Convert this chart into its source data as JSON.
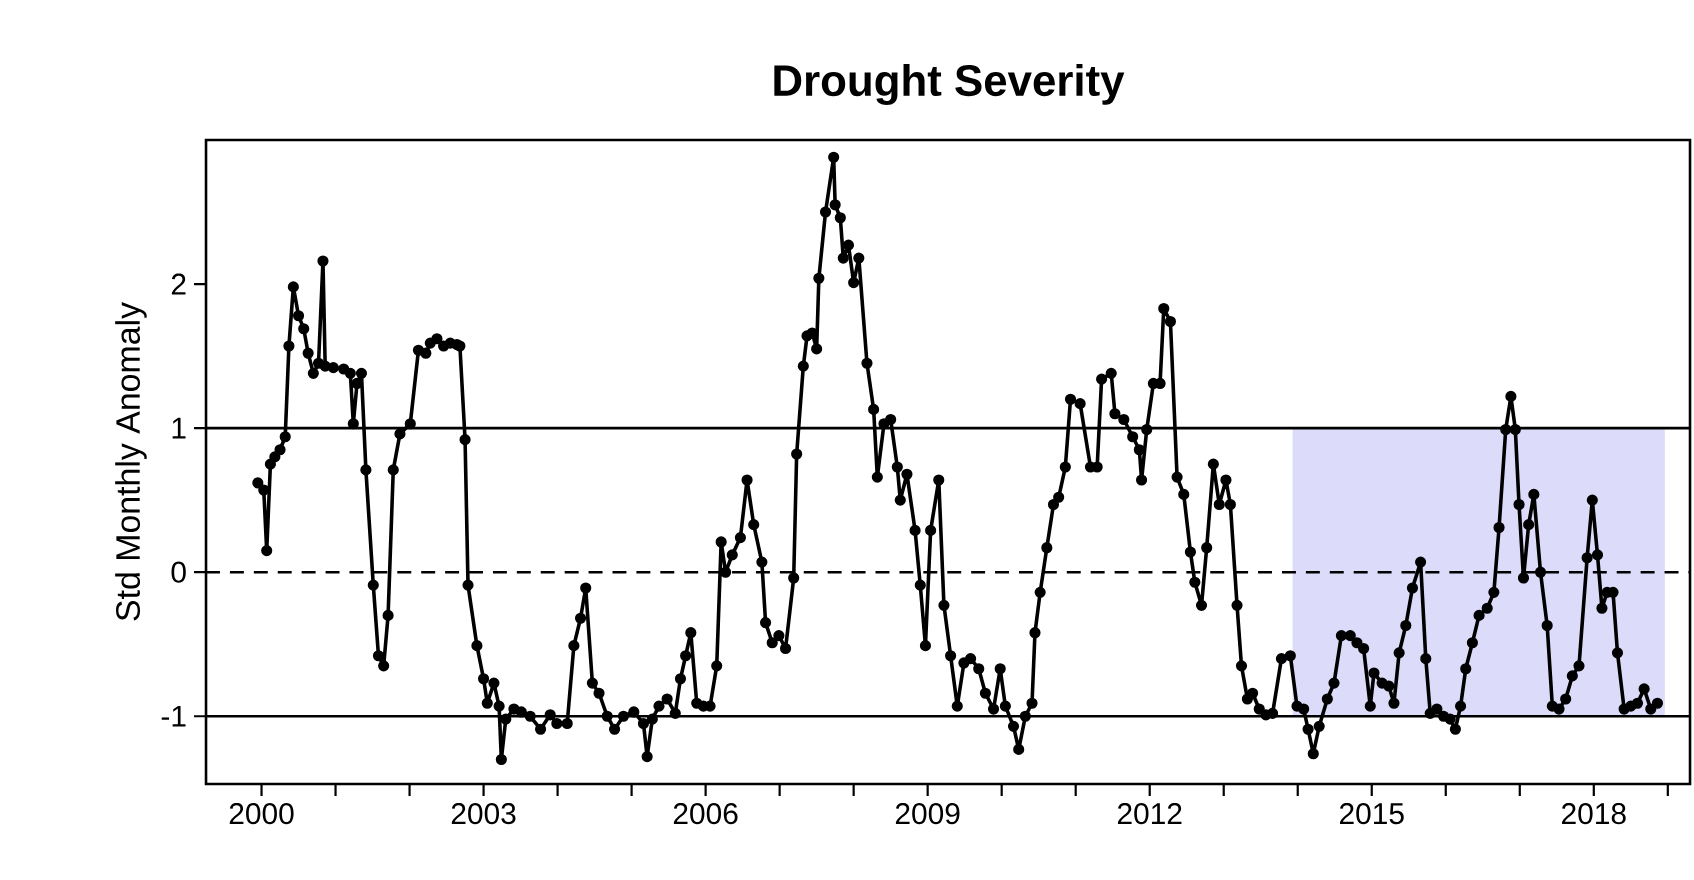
{
  "chart_data": {
    "type": "line",
    "title": "Drought Severity",
    "ylabel": "Std Monthly Anomaly",
    "marker": "circle",
    "line_style": "solid",
    "xlim": [
      1999.25,
      2019.3
    ],
    "ylim": [
      -1.47,
      3.0
    ],
    "xticks": [
      2000,
      {
        "value": 2001,
        "label": null
      },
      {
        "value": 2002,
        "label": null
      },
      2003,
      {
        "value": 2004,
        "label": null
      },
      {
        "value": 2005,
        "label": null
      },
      2006,
      {
        "value": 2007,
        "label": null
      },
      {
        "value": 2008,
        "label": null
      },
      2009,
      {
        "value": 2010,
        "label": null
      },
      {
        "value": 2011,
        "label": null
      },
      2012,
      {
        "value": 2013,
        "label": null
      },
      {
        "value": 2014,
        "label": null
      },
      2015,
      {
        "value": 2016,
        "label": null
      },
      {
        "value": 2017,
        "label": null
      },
      2018,
      {
        "value": 2019,
        "label": null
      }
    ],
    "yticks": [
      -1,
      0,
      1,
      2
    ],
    "ref_lines": [
      {
        "axis": "y",
        "value": 1,
        "color": "#000000",
        "line_style": "solid"
      },
      {
        "axis": "y",
        "value": 0,
        "color": "#000000",
        "line_style": "dashed"
      },
      {
        "axis": "y",
        "value": -1,
        "color": "#000000",
        "line_style": "solid"
      }
    ],
    "bands": [
      {
        "axis": "x",
        "from": 2013.93,
        "to": 2018.96,
        "color": "#dcdcfa"
      }
    ],
    "series": [
      {
        "color": "#000000",
        "x": [
          1999.95,
          2000.03,
          2000.07,
          2000.12,
          2000.18,
          2000.25,
          2000.32,
          2000.37,
          2000.43,
          2000.5,
          2000.57,
          2000.63,
          2000.7,
          2000.77,
          2000.83,
          2000.86,
          2000.97,
          2001.11,
          2001.2,
          2001.24,
          2001.29,
          2001.35,
          2001.41,
          2001.51,
          2001.58,
          2001.65,
          2001.71,
          2001.78,
          2001.87,
          2002.01,
          2002.12,
          2002.22,
          2002.28,
          2002.37,
          2002.46,
          2002.55,
          2002.64,
          2002.68,
          2002.75,
          2002.79,
          2002.91,
          2003.0,
          2003.05,
          2003.14,
          2003.21,
          2003.24,
          2003.3,
          2003.41,
          2003.51,
          2003.63,
          2003.77,
          2003.9,
          2003.99,
          2004.13,
          2004.22,
          2004.31,
          2004.38,
          2004.47,
          2004.56,
          2004.67,
          2004.77,
          2004.89,
          2005.03,
          2005.16,
          2005.21,
          2005.28,
          2005.37,
          2005.48,
          2005.59,
          2005.66,
          2005.73,
          2005.8,
          2005.88,
          2005.97,
          2006.06,
          2006.15,
          2006.21,
          2006.27,
          2006.36,
          2006.47,
          2006.56,
          2006.65,
          2006.76,
          2006.81,
          2006.9,
          2006.99,
          2007.08,
          2007.19,
          2007.23,
          2007.32,
          2007.37,
          2007.44,
          2007.5,
          2007.53,
          2007.62,
          2007.73,
          2007.75,
          2007.82,
          2007.86,
          2007.93,
          2008.0,
          2008.07,
          2008.18,
          2008.27,
          2008.32,
          2008.41,
          2008.5,
          2008.59,
          2008.63,
          2008.72,
          2008.83,
          2008.9,
          2008.97,
          2009.04,
          2009.15,
          2009.22,
          2009.31,
          2009.4,
          2009.49,
          2009.58,
          2009.69,
          2009.78,
          2009.89,
          2009.98,
          2010.05,
          2010.16,
          2010.23,
          2010.32,
          2010.41,
          2010.45,
          2010.52,
          2010.61,
          2010.7,
          2010.77,
          2010.86,
          2010.93,
          2011.06,
          2011.2,
          2011.29,
          2011.35,
          2011.48,
          2011.53,
          2011.65,
          2011.77,
          2011.86,
          2011.89,
          2011.96,
          2012.05,
          2012.14,
          2012.19,
          2012.28,
          2012.37,
          2012.46,
          2012.55,
          2012.61,
          2012.7,
          2012.77,
          2012.86,
          2012.94,
          2013.03,
          2013.09,
          2013.18,
          2013.24,
          2013.32,
          2013.39,
          2013.48,
          2013.57,
          2013.66,
          2013.78,
          2013.9,
          2013.99,
          2014.08,
          2014.14,
          2014.21,
          2014.29,
          2014.4,
          2014.49,
          2014.59,
          2014.71,
          2014.8,
          2014.89,
          2014.98,
          2015.03,
          2015.14,
          2015.23,
          2015.3,
          2015.37,
          2015.46,
          2015.55,
          2015.66,
          2015.73,
          2015.79,
          2015.88,
          2015.97,
          2016.06,
          2016.13,
          2016.2,
          2016.27,
          2016.36,
          2016.45,
          2016.56,
          2016.65,
          2016.72,
          2016.81,
          2016.88,
          2016.94,
          2016.99,
          2017.05,
          2017.12,
          2017.19,
          2017.28,
          2017.37,
          2017.44,
          2017.53,
          2017.62,
          2017.71,
          2017.8,
          2017.91,
          2017.98,
          2018.05,
          2018.11,
          2018.18,
          2018.26,
          2018.32,
          2018.41,
          2018.5,
          2018.59,
          2018.68,
          2018.77,
          2018.86
        ],
        "values": [
          0.62,
          0.57,
          0.15,
          0.75,
          0.8,
          0.85,
          0.94,
          1.57,
          1.98,
          1.78,
          1.69,
          1.52,
          1.38,
          1.45,
          2.16,
          1.43,
          1.42,
          1.41,
          1.38,
          1.03,
          1.31,
          1.38,
          0.71,
          -0.09,
          -0.58,
          -0.65,
          -0.3,
          0.71,
          0.96,
          1.03,
          1.54,
          1.52,
          1.59,
          1.62,
          1.57,
          1.59,
          1.58,
          1.57,
          0.92,
          -0.09,
          -0.51,
          -0.74,
          -0.91,
          -0.77,
          -0.93,
          -1.3,
          -1.02,
          -0.95,
          -0.97,
          -1.0,
          -1.09,
          -0.99,
          -1.05,
          -1.05,
          -0.51,
          -0.32,
          -0.11,
          -0.77,
          -0.84,
          -1.0,
          -1.09,
          -1.0,
          -0.97,
          -1.05,
          -1.28,
          -1.02,
          -0.93,
          -0.88,
          -0.98,
          -0.74,
          -0.58,
          -0.42,
          -0.91,
          -0.93,
          -0.93,
          -0.65,
          0.21,
          0.0,
          0.12,
          0.24,
          0.64,
          0.33,
          0.07,
          -0.35,
          -0.49,
          -0.44,
          -0.53,
          -0.04,
          0.82,
          1.43,
          1.64,
          1.66,
          1.55,
          2.04,
          2.5,
          2.88,
          2.55,
          2.46,
          2.18,
          2.27,
          2.01,
          2.18,
          1.45,
          1.13,
          0.66,
          1.03,
          1.06,
          0.73,
          0.5,
          0.68,
          0.29,
          -0.09,
          -0.51,
          0.29,
          0.64,
          -0.23,
          -0.58,
          -0.93,
          -0.63,
          -0.6,
          -0.67,
          -0.84,
          -0.95,
          -0.67,
          -0.93,
          -1.07,
          -1.23,
          -1.0,
          -0.91,
          -0.42,
          -0.14,
          0.17,
          0.47,
          0.52,
          0.73,
          1.2,
          1.17,
          0.73,
          0.73,
          1.34,
          1.38,
          1.1,
          1.06,
          0.94,
          0.85,
          0.64,
          0.99,
          1.31,
          1.31,
          1.83,
          1.74,
          0.66,
          0.54,
          0.14,
          -0.07,
          -0.23,
          0.17,
          0.75,
          0.47,
          0.64,
          0.47,
          -0.23,
          -0.65,
          -0.88,
          -0.84,
          -0.95,
          -0.99,
          -0.98,
          -0.6,
          -0.58,
          -0.93,
          -0.95,
          -1.09,
          -1.26,
          -1.07,
          -0.88,
          -0.77,
          -0.44,
          -0.44,
          -0.49,
          -0.53,
          -0.93,
          -0.7,
          -0.77,
          -0.79,
          -0.91,
          -0.56,
          -0.37,
          -0.11,
          0.07,
          -0.6,
          -0.98,
          -0.95,
          -1.0,
          -1.02,
          -1.09,
          -0.93,
          -0.67,
          -0.49,
          -0.3,
          -0.25,
          -0.14,
          0.31,
          0.99,
          1.22,
          0.99,
          0.47,
          -0.04,
          0.33,
          0.54,
          0.0,
          -0.37,
          -0.93,
          -0.95,
          -0.88,
          -0.72,
          -0.65,
          0.1,
          0.5,
          0.12,
          -0.25,
          -0.14,
          -0.14,
          -0.56,
          -0.95,
          -0.93,
          -0.91,
          -0.81,
          -0.95,
          -0.91
        ]
      }
    ]
  }
}
